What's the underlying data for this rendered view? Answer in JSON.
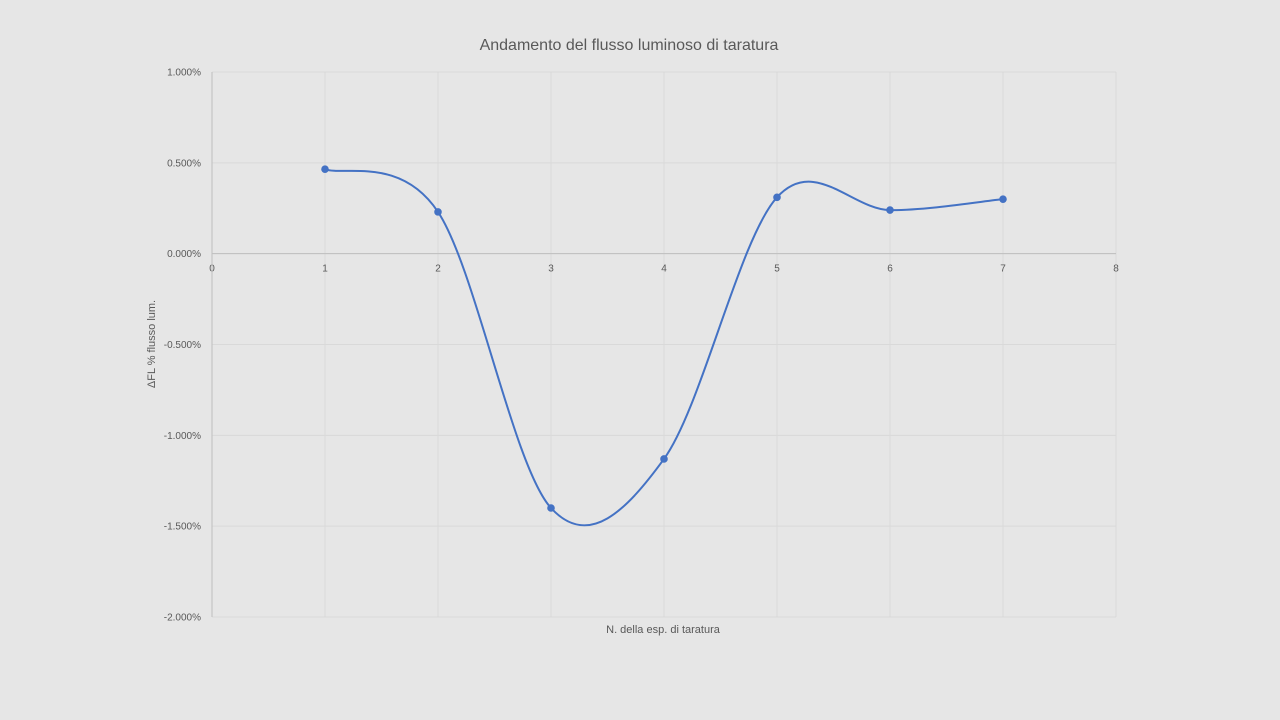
{
  "chart_data": {
    "type": "line",
    "title": "Andamento del flusso luminoso di taratura",
    "xlabel": "N. della esp. di taratura",
    "ylabel": "ΔFL % flusso lum.",
    "xlim": [
      0,
      8
    ],
    "ylim": [
      -2.0,
      1.0
    ],
    "x_ticks": [
      "0",
      "1",
      "2",
      "3",
      "4",
      "5",
      "6",
      "7",
      "8"
    ],
    "y_ticks": [
      "1.000%",
      "0.500%",
      "0.000%",
      "-0.500%",
      "-1.000%",
      "-1.500%",
      "-2.000%"
    ],
    "grid": true,
    "smooth": true,
    "series": [
      {
        "x": [
          1,
          2,
          3,
          4,
          5,
          6,
          7
        ],
        "y": [
          0.465,
          0.23,
          -1.4,
          -1.13,
          0.31,
          0.24,
          0.3
        ],
        "color": "#4472c4"
      }
    ]
  },
  "colors": {
    "background": "#e6e6e6",
    "grid": "#d9d9d9",
    "axis": "#bfbfbf",
    "text": "#595959",
    "series": "#4472c4"
  }
}
